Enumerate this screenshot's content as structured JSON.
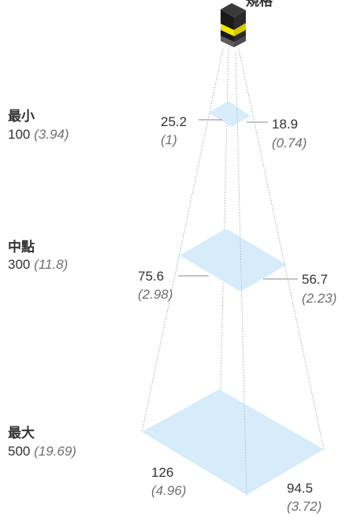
{
  "sensor": {
    "label": "規格"
  },
  "levels": {
    "min": {
      "label": "最小",
      "distance": "100",
      "distance_in": "(3.94)",
      "width": "25.2",
      "width_in": "(1)",
      "depth": "18.9",
      "depth_in": "(0.74)"
    },
    "mid": {
      "label": "中點",
      "distance": "300",
      "distance_in": "(11.8)",
      "width": "75.6",
      "width_in": "(2.98)",
      "depth": "56.7",
      "depth_in": "(2.23)"
    },
    "max": {
      "label": "最大",
      "distance": "500",
      "distance_in": "(19.69)",
      "width": "126",
      "width_in": "(4.96)",
      "depth": "94.5",
      "depth_in": "(3.72)"
    }
  },
  "colors": {
    "plane_fill": "#d6ecfb",
    "sensor_yellow": "#f4e400",
    "sensor_dark": "#1a1a1a",
    "sensor_gray": "#5c5c5c",
    "guide_line": "#888888",
    "text": "#333333",
    "italic_text": "#707070"
  }
}
